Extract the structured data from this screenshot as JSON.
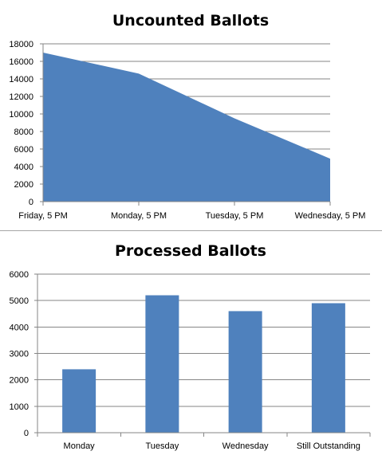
{
  "chart_data": [
    {
      "type": "area",
      "title": "Uncounted Ballots",
      "categories": [
        "Friday, 5 PM",
        "Monday, 5 PM",
        "Tuesday, 5 PM",
        "Wednesday, 5 PM"
      ],
      "values": [
        17000,
        14600,
        9500,
        4900
      ],
      "ylim": [
        0,
        18000
      ],
      "yticks": [
        0,
        2000,
        4000,
        6000,
        8000,
        10000,
        12000,
        14000,
        16000,
        18000
      ],
      "xlabel": "",
      "ylabel": "",
      "grid": true,
      "color": "#4f81bd"
    },
    {
      "type": "bar",
      "title": "Processed Ballots",
      "categories": [
        "Monday",
        "Tuesday",
        "Wednesday",
        "Still Outstanding"
      ],
      "values": [
        2400,
        5200,
        4600,
        4900
      ],
      "ylim": [
        0,
        6000
      ],
      "yticks": [
        0,
        1000,
        2000,
        3000,
        4000,
        5000,
        6000
      ],
      "xlabel": "",
      "ylabel": "",
      "grid": true,
      "color": "#4f81bd"
    }
  ]
}
